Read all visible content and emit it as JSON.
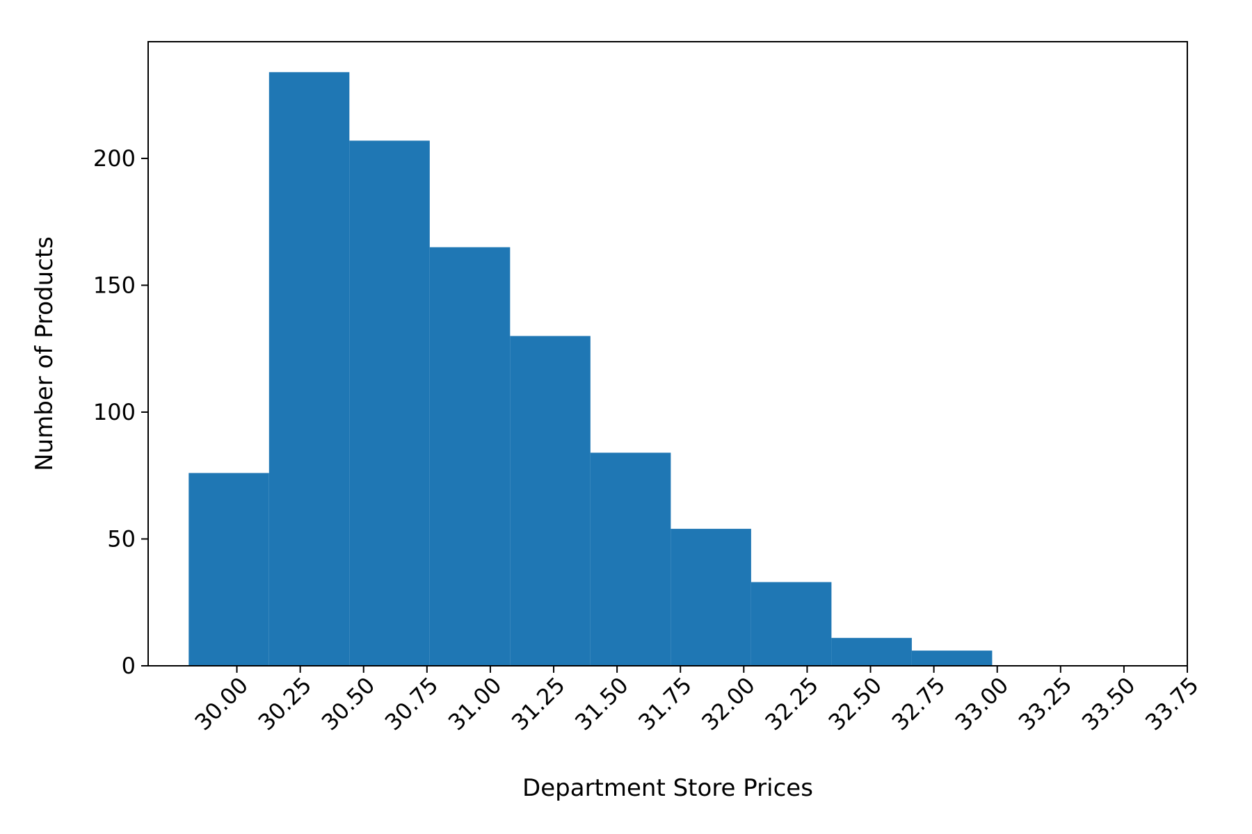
{
  "chart_data": {
    "type": "bar",
    "histogram": true,
    "title": "",
    "xlabel": "Department Store Prices",
    "ylabel": "Number of Products",
    "bin_edges": [
      29.81,
      30.127,
      30.444,
      30.761,
      31.078,
      31.395,
      31.712,
      32.029,
      32.346,
      32.663,
      32.98
    ],
    "values": [
      76,
      234,
      207,
      165,
      130,
      84,
      54,
      33,
      11,
      6
    ],
    "xlim": [
      29.65,
      33.75
    ],
    "ylim": [
      0,
      246
    ],
    "xticks": [
      "30.00",
      "30.25",
      "30.50",
      "30.75",
      "31.00",
      "31.25",
      "31.50",
      "31.75",
      "32.00",
      "32.25",
      "32.50",
      "32.75",
      "33.00",
      "33.25",
      "33.50",
      "33.75"
    ],
    "yticks": [
      "0",
      "50",
      "100",
      "150",
      "200"
    ],
    "bar_color": "#1f77b4",
    "grid": false,
    "legend": "none"
  }
}
